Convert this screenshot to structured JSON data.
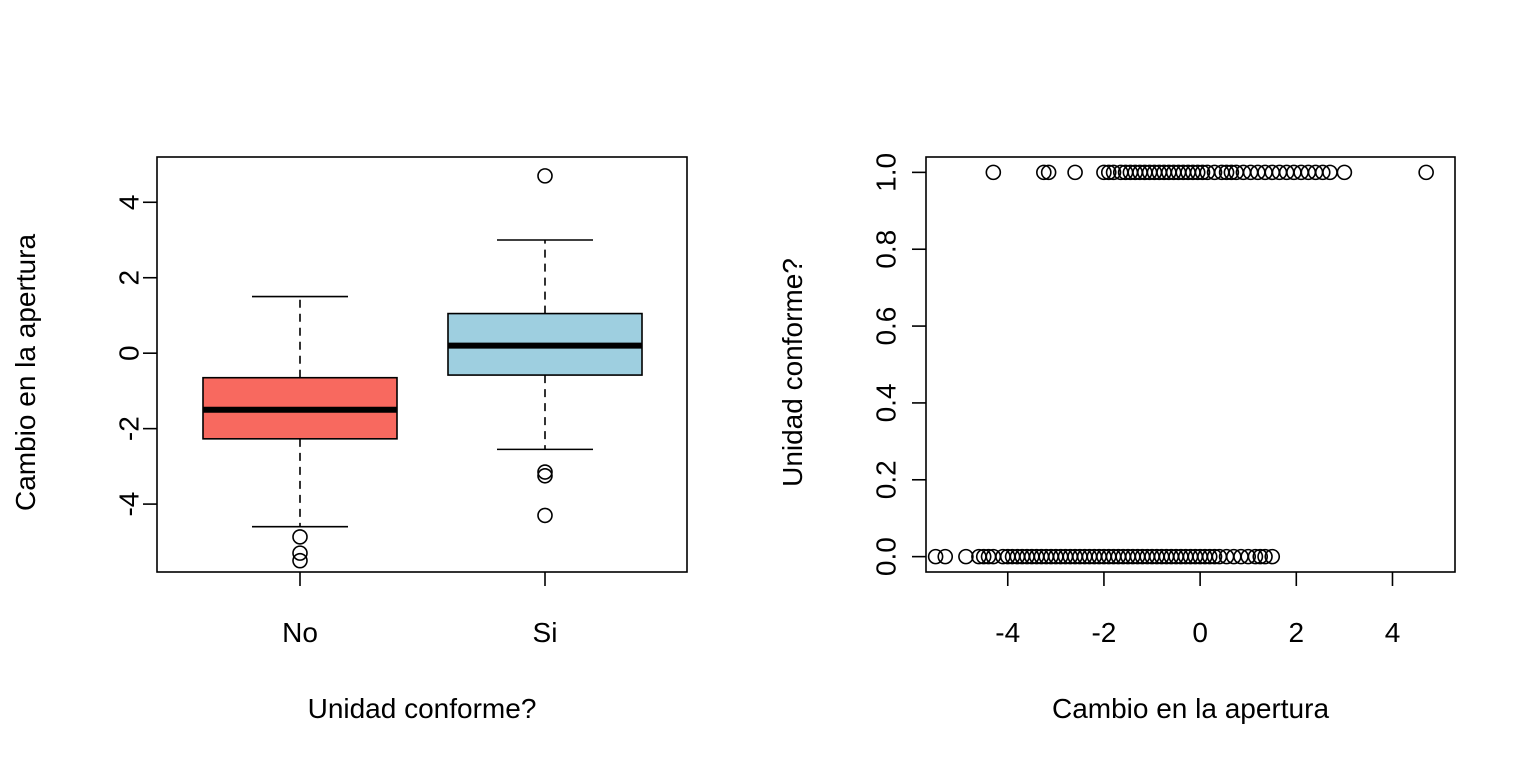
{
  "chart_data": [
    {
      "type": "boxplot",
      "xlabel": "Unidad conforme?",
      "ylabel": "Cambio en la apertura",
      "ylim": [
        -5.8,
        5.2
      ],
      "yticks": [
        -4,
        -2,
        0,
        2,
        4
      ],
      "ytick_labels": [
        "-4",
        "-2",
        "0",
        "2",
        "4"
      ],
      "categories": [
        "No",
        "Si"
      ],
      "boxes": [
        {
          "category": "No",
          "color": "#F8695F",
          "whisker_low": -4.6,
          "q1": -2.27,
          "median": -1.5,
          "q3": -0.65,
          "whisker_high": 1.5,
          "outliers": [
            -4.87,
            -5.3,
            -5.5
          ]
        },
        {
          "category": "Si",
          "color": "#9ECFE0",
          "whisker_low": -2.55,
          "q1": -0.58,
          "median": 0.2,
          "q3": 1.05,
          "whisker_high": 3.0,
          "outliers": [
            4.7,
            -3.15,
            -3.25,
            -4.3
          ]
        }
      ]
    },
    {
      "type": "scatter",
      "xlabel": "Cambio en la apertura",
      "ylabel": "Unidad conforme?",
      "xlim": [
        -5.7,
        5.3
      ],
      "ylim": [
        -0.04,
        1.04
      ],
      "xticks": [
        -4,
        -2,
        0,
        2,
        4
      ],
      "xtick_labels": [
        "-4",
        "-2",
        "0",
        "2",
        "4"
      ],
      "yticks": [
        0.0,
        0.2,
        0.4,
        0.6,
        0.8,
        1.0
      ],
      "ytick_labels": [
        "0.0",
        "0.2",
        "0.4",
        "0.6",
        "0.8",
        "1.0"
      ],
      "x_y1": [
        -4.3,
        -3.25,
        -3.15,
        -2.6,
        -2.0,
        -1.9,
        -1.8,
        -1.65,
        -1.55,
        -1.45,
        -1.35,
        -1.25,
        -1.15,
        -1.05,
        -0.95,
        -0.85,
        -0.75,
        -0.65,
        -0.55,
        -0.45,
        -0.35,
        -0.25,
        -0.15,
        -0.05,
        0.05,
        0.15,
        0.3,
        0.45,
        0.55,
        0.65,
        0.75,
        0.9,
        1.05,
        1.2,
        1.35,
        1.5,
        1.65,
        1.8,
        1.95,
        2.1,
        2.25,
        2.4,
        2.55,
        2.7,
        3.0,
        4.7
      ],
      "x_y0": [
        -5.5,
        -5.3,
        -4.87,
        -4.6,
        -4.5,
        -4.4,
        -4.3,
        -4.1,
        -4.0,
        -3.9,
        -3.8,
        -3.7,
        -3.6,
        -3.5,
        -3.4,
        -3.3,
        -3.2,
        -3.1,
        -3.0,
        -2.9,
        -2.8,
        -2.7,
        -2.6,
        -2.5,
        -2.4,
        -2.3,
        -2.2,
        -2.1,
        -2.0,
        -1.9,
        -1.8,
        -1.7,
        -1.6,
        -1.5,
        -1.4,
        -1.3,
        -1.2,
        -1.1,
        -1.0,
        -0.9,
        -0.8,
        -0.7,
        -0.6,
        -0.5,
        -0.4,
        -0.3,
        -0.2,
        -0.1,
        0.0,
        0.1,
        0.2,
        0.3,
        0.4,
        0.55,
        0.7,
        0.85,
        1.0,
        1.15,
        1.25,
        1.35,
        1.5
      ]
    }
  ]
}
